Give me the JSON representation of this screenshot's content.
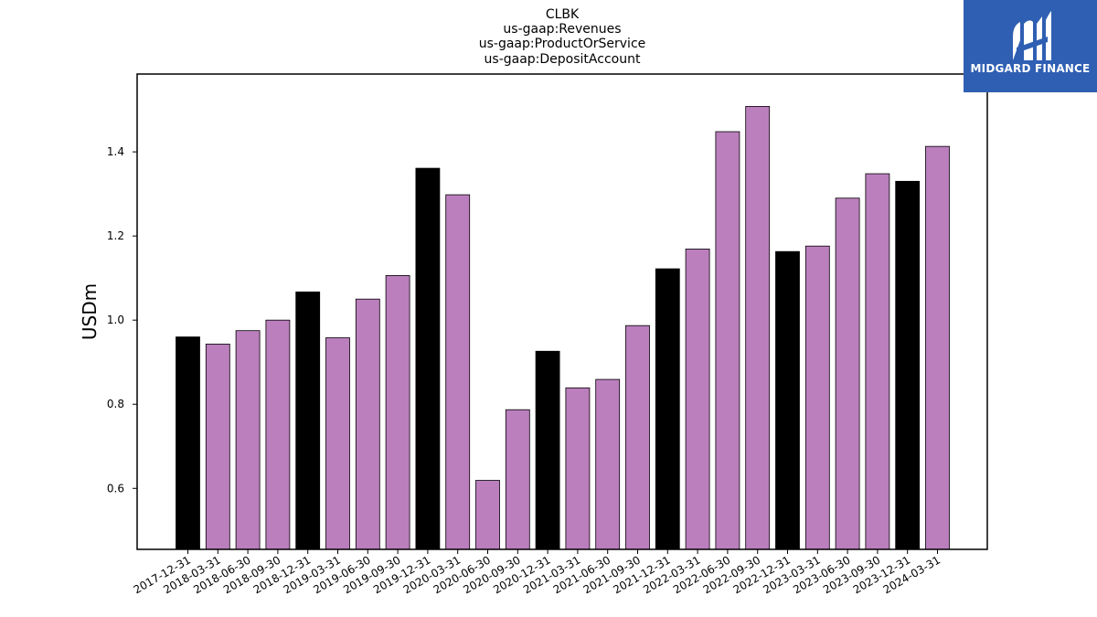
{
  "chart_data": {
    "type": "bar",
    "title_lines": [
      "CLBK",
      "us-gaap:Revenues",
      "us-gaap:ProductOrService",
      "us-gaap:DepositAccount"
    ],
    "ylabel": "USDm",
    "xlabel": "",
    "ylim": [
      0.455,
      1.585
    ],
    "yticks": [
      0.6,
      0.8,
      1.0,
      1.2,
      1.4
    ],
    "ytick_labels": [
      "0.6",
      "0.8",
      "1.0",
      "1.2",
      "1.4"
    ],
    "grid": false,
    "categories": [
      "2017-12-31",
      "2018-03-31",
      "2018-06-30",
      "2018-09-30",
      "2018-12-31",
      "2019-03-31",
      "2019-06-30",
      "2019-09-30",
      "2019-12-31",
      "2020-03-31",
      "2020-06-30",
      "2020-09-30",
      "2020-12-31",
      "2021-03-31",
      "2021-06-30",
      "2021-09-30",
      "2021-12-31",
      "2022-03-31",
      "2022-06-30",
      "2022-09-30",
      "2022-12-31",
      "2023-03-31",
      "2023-06-30",
      "2023-09-30",
      "2023-12-31",
      "2024-03-31"
    ],
    "values": [
      0.96,
      0.943,
      0.975,
      1.0,
      1.067,
      0.958,
      1.05,
      1.106,
      1.361,
      1.298,
      0.619,
      0.787,
      0.926,
      0.839,
      0.859,
      0.987,
      1.122,
      1.169,
      1.448,
      1.508,
      1.163,
      1.176,
      1.29,
      1.348,
      1.33,
      1.413
    ],
    "year_end_color": "#000000",
    "quarter_color": "#bb7fbd"
  },
  "logo": {
    "text": "MIDGARD FINANCE",
    "background": "#2f5fb3",
    "icon": "midgard-logo-icon"
  }
}
